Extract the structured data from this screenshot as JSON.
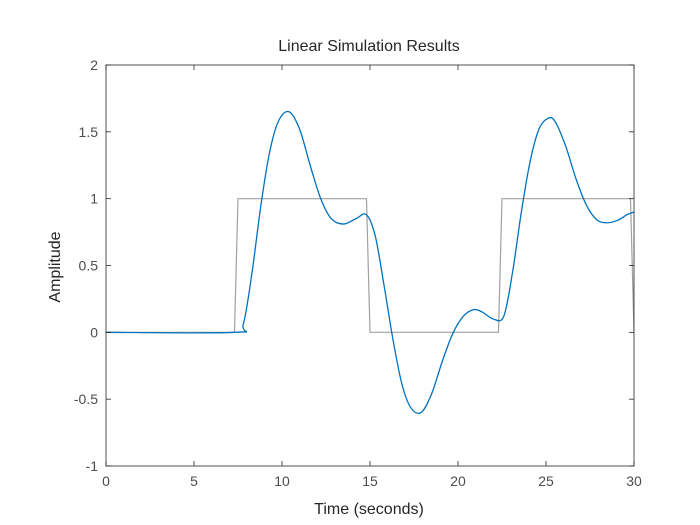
{
  "chart_data": {
    "type": "line",
    "title": "Linear Simulation Results",
    "xlabel": "Time (seconds)",
    "ylabel": "Amplitude",
    "xlim": [
      0,
      30
    ],
    "ylim": [
      -1,
      2
    ],
    "xticks": [
      0,
      5,
      10,
      15,
      20,
      25,
      30
    ],
    "xtick_labels": [
      "0",
      "5",
      "10",
      "15",
      "20",
      "25",
      "30"
    ],
    "yticks": [
      -1,
      -0.5,
      0,
      0.5,
      1,
      1.5,
      2
    ],
    "ytick_labels": [
      "-1",
      "-0.5",
      "0",
      "0.5",
      "1",
      "1.5",
      "2"
    ],
    "grid": false,
    "box": true,
    "series": [
      {
        "role": "input",
        "color": "#a0a0a0",
        "x": [
          0,
          7.3,
          7.5,
          14.8,
          15.0,
          22.3,
          22.5,
          29.8,
          30.0
        ],
        "y": [
          0,
          0,
          1,
          1,
          0,
          0,
          1,
          1,
          0
        ]
      },
      {
        "role": "response",
        "color": "#0072bd",
        "x": [
          0,
          7.3,
          7.8,
          8.3,
          8.8,
          9.3,
          9.8,
          10.4,
          11.0,
          11.6,
          12.2,
          12.8,
          13.5,
          14.2,
          14.8,
          15.3,
          15.8,
          16.3,
          16.8,
          17.3,
          17.9,
          18.5,
          19.1,
          19.7,
          20.3,
          20.9,
          21.4,
          22.0,
          22.6,
          23.1,
          23.6,
          24.1,
          24.6,
          25.1,
          25.5,
          26.1,
          26.7,
          27.3,
          27.9,
          28.5,
          29.1,
          29.6,
          30.0
        ],
        "y": [
          0,
          0,
          0.06,
          0.45,
          0.95,
          1.35,
          1.58,
          1.65,
          1.52,
          1.25,
          1.0,
          0.85,
          0.81,
          0.85,
          0.88,
          0.72,
          0.35,
          -0.05,
          -0.38,
          -0.56,
          -0.6,
          -0.46,
          -0.22,
          -0.01,
          0.12,
          0.17,
          0.15,
          0.1,
          0.12,
          0.45,
          0.9,
          1.28,
          1.52,
          1.6,
          1.58,
          1.4,
          1.15,
          0.95,
          0.84,
          0.82,
          0.84,
          0.88,
          0.9
        ]
      }
    ]
  }
}
